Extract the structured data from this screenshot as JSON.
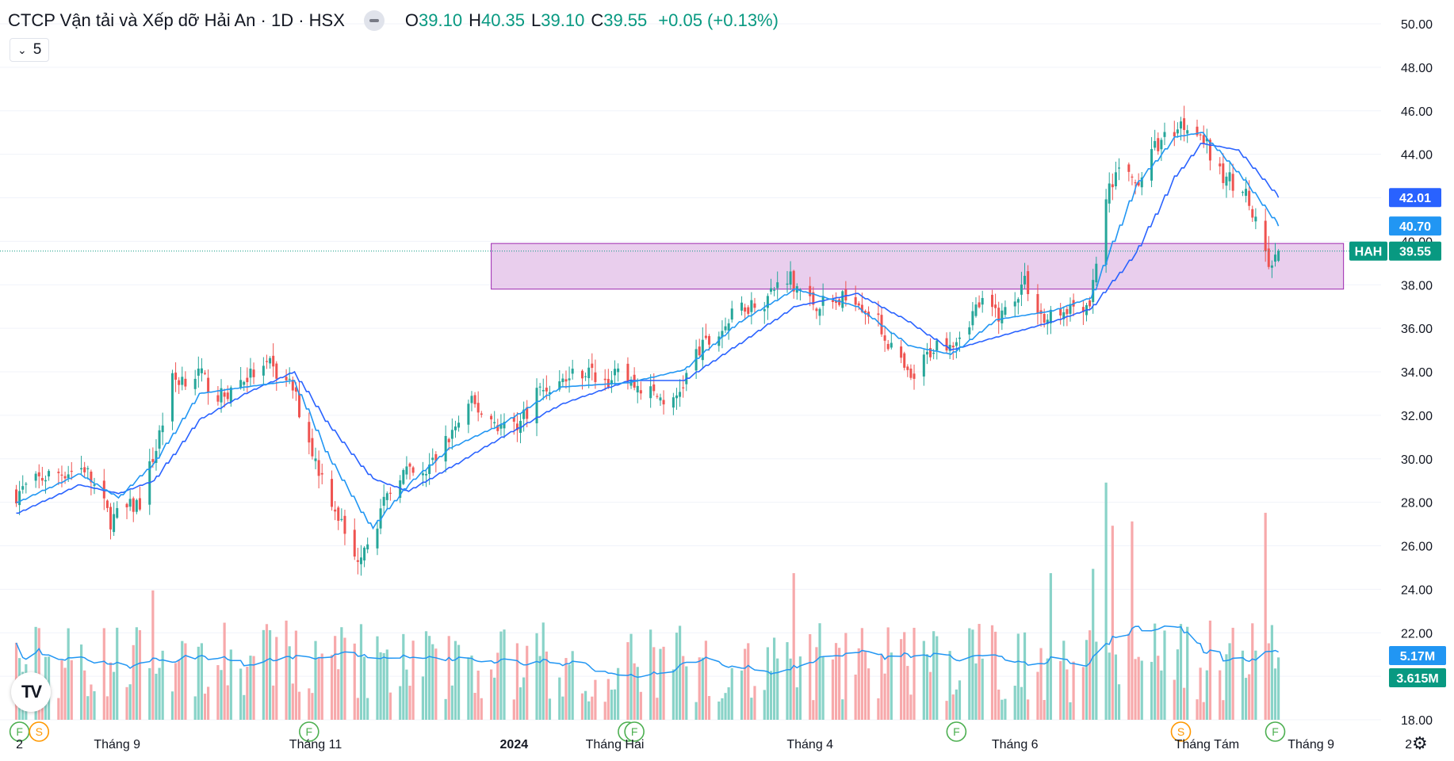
{
  "header": {
    "title": "CTCP Vận tải và Xếp dỡ Hải An · 1D · HSX",
    "open_label": "O",
    "open": "39.10",
    "high_label": "H",
    "high": "40.35",
    "low_label": "L",
    "low": "39.10",
    "close_label": "C",
    "close": "39.55",
    "change": "+0.05 (+0.13%)"
  },
  "indicator_badge": "5",
  "logo_text": "TV",
  "icons": {
    "collapse": "minus-icon",
    "chevron": "chevron-down-icon",
    "settings": "gear-icon",
    "logo": "tradingview-logo"
  },
  "colors": {
    "up": "#26a69a",
    "down": "#ef5350",
    "ma_fast": "#2196f3",
    "ma_slow": "#2962ff",
    "zone_fill": "#e1bee7",
    "zone_border": "#9c27b0",
    "volume_up": "#89d3c8",
    "volume_down": "#f7a9ab",
    "volume_ma": "#2196f3"
  },
  "chart_data": {
    "type": "candlestick",
    "symbol": "HAH",
    "ylim": [
      18,
      50
    ],
    "y_ticks": [
      "50.00",
      "48.00",
      "46.00",
      "44.00",
      "42.00",
      "40.00",
      "38.00",
      "36.00",
      "34.00",
      "32.00",
      "30.00",
      "28.00",
      "26.00",
      "24.00",
      "22.00",
      "20.00",
      "18.00"
    ],
    "x_ticks": [
      "2",
      "Tháng 9",
      "Tháng 11",
      "2024",
      "Tháng Hai",
      "Tháng 4",
      "Tháng 6",
      "Tháng Tám",
      "Tháng 9",
      "2"
    ],
    "grid": true,
    "price_labels": [
      {
        "text": "42.01",
        "value": 42.01,
        "color": "#2962ff"
      },
      {
        "text": "40.70",
        "value": 40.7,
        "color": "#2196f3"
      },
      {
        "symbol": "HAH",
        "text": "39.55",
        "value": 39.55,
        "color": "#089981"
      }
    ],
    "volume_labels": [
      {
        "text": "5.17M",
        "color": "#2196f3"
      },
      {
        "text": "3.615M",
        "color": "#089981"
      }
    ],
    "zone": {
      "from_date": "2023-12-25",
      "to_date": "2024-09-12",
      "low": 37.8,
      "high": 39.9
    },
    "close_path": [
      [
        "2023-08-01",
        28.4
      ],
      [
        "2023-08-10",
        29.2
      ],
      [
        "2023-08-22",
        29.6
      ],
      [
        "2023-08-30",
        27.2
      ],
      [
        "2023-09-08",
        28.0
      ],
      [
        "2023-09-13",
        30.6
      ],
      [
        "2023-09-18",
        33.6
      ],
      [
        "2023-09-26",
        33.9
      ],
      [
        "2023-10-03",
        32.8
      ],
      [
        "2023-10-10",
        33.7
      ],
      [
        "2023-10-18",
        34.2
      ],
      [
        "2023-10-25",
        33.2
      ],
      [
        "2023-11-01",
        29.9
      ],
      [
        "2023-11-07",
        27.8
      ],
      [
        "2023-11-13",
        25.3
      ],
      [
        "2023-11-20",
        27.2
      ],
      [
        "2023-11-27",
        29.4
      ],
      [
        "2023-12-04",
        29.1
      ],
      [
        "2023-12-12",
        31.0
      ],
      [
        "2023-12-19",
        32.5
      ],
      [
        "2023-12-28",
        31.5
      ],
      [
        "2024-01-03",
        31.7
      ],
      [
        "2024-01-08",
        33.1
      ],
      [
        "2024-01-15",
        33.5
      ],
      [
        "2024-01-22",
        34.1
      ],
      [
        "2024-01-29",
        33.6
      ],
      [
        "2024-02-02",
        33.8
      ],
      [
        "2024-02-19",
        32.5
      ],
      [
        "2024-02-26",
        34.8
      ],
      [
        "2024-03-04",
        35.8
      ],
      [
        "2024-03-11",
        37.0
      ],
      [
        "2024-03-18",
        37.3
      ],
      [
        "2024-03-25",
        38.5
      ],
      [
        "2024-04-01",
        37.2
      ],
      [
        "2024-04-08",
        37.1
      ],
      [
        "2024-04-15",
        37.5
      ],
      [
        "2024-04-22",
        36.2
      ],
      [
        "2024-05-02",
        33.5
      ],
      [
        "2024-05-09",
        35.2
      ],
      [
        "2024-05-16",
        35.6
      ],
      [
        "2024-05-23",
        37.1
      ],
      [
        "2024-05-30",
        36.6
      ],
      [
        "2024-06-06",
        38.2
      ],
      [
        "2024-06-12",
        36.3
      ],
      [
        "2024-06-19",
        37.0
      ],
      [
        "2024-06-26",
        37.2
      ],
      [
        "2024-07-01",
        41.8
      ],
      [
        "2024-07-05",
        43.5
      ],
      [
        "2024-07-10",
        42.6
      ],
      [
        "2024-07-17",
        44.5
      ],
      [
        "2024-07-24",
        45.4
      ],
      [
        "2024-07-29",
        45.3
      ],
      [
        "2024-08-05",
        43.0
      ],
      [
        "2024-08-12",
        42.6
      ],
      [
        "2024-08-16",
        40.7
      ],
      [
        "2024-08-21",
        38.6
      ],
      [
        "2024-08-23",
        39.55
      ]
    ],
    "volume_spikes": [
      [
        "2023-09-12",
        3.0
      ],
      [
        "2023-10-23",
        2.3
      ],
      [
        "2024-02-05",
        1.8
      ],
      [
        "2024-03-27",
        3.4
      ],
      [
        "2024-06-14",
        3.4
      ],
      [
        "2024-06-27",
        3.5
      ],
      [
        "2024-07-01",
        5.5
      ],
      [
        "2024-07-03",
        4.5
      ],
      [
        "2024-07-09",
        4.6
      ],
      [
        "2024-08-19",
        4.8
      ]
    ],
    "ma_slow_path": [
      [
        "2023-08-01",
        27.5
      ],
      [
        "2023-08-20",
        28.8
      ],
      [
        "2023-09-01",
        28.4
      ],
      [
        "2023-09-12",
        29.0
      ],
      [
        "2023-09-26",
        31.8
      ],
      [
        "2023-10-10",
        33.0
      ],
      [
        "2023-10-25",
        34.0
      ],
      [
        "2023-11-05",
        31.5
      ],
      [
        "2023-11-18",
        29.1
      ],
      [
        "2023-11-29",
        28.5
      ],
      [
        "2023-12-12",
        29.6
      ],
      [
        "2023-12-28",
        31.0
      ],
      [
        "2024-01-15",
        32.5
      ],
      [
        "2024-02-05",
        33.6
      ],
      [
        "2024-02-22",
        33.6
      ],
      [
        "2024-03-10",
        35.3
      ],
      [
        "2024-03-27",
        37.0
      ],
      [
        "2024-04-15",
        37.6
      ],
      [
        "2024-05-01",
        36.3
      ],
      [
        "2024-05-14",
        35.0
      ],
      [
        "2024-05-28",
        35.6
      ],
      [
        "2024-06-14",
        36.3
      ],
      [
        "2024-06-26",
        36.9
      ],
      [
        "2024-07-10",
        39.5
      ],
      [
        "2024-07-22",
        43.0
      ],
      [
        "2024-07-30",
        44.5
      ],
      [
        "2024-08-10",
        44.2
      ],
      [
        "2024-08-23",
        42.01
      ]
    ],
    "ma_fast_path": [
      [
        "2023-08-01",
        28.0
      ],
      [
        "2023-08-20",
        29.3
      ],
      [
        "2023-09-01",
        28.2
      ],
      [
        "2023-09-12",
        29.8
      ],
      [
        "2023-09-26",
        33.0
      ],
      [
        "2023-10-10",
        33.3
      ],
      [
        "2023-10-25",
        33.6
      ],
      [
        "2023-11-05",
        30.0
      ],
      [
        "2023-11-18",
        26.8
      ],
      [
        "2023-11-29",
        28.8
      ],
      [
        "2023-12-12",
        30.5
      ],
      [
        "2023-12-28",
        31.6
      ],
      [
        "2024-01-15",
        33.3
      ],
      [
        "2024-02-05",
        33.5
      ],
      [
        "2024-02-22",
        34.1
      ],
      [
        "2024-03-10",
        36.3
      ],
      [
        "2024-03-27",
        37.8
      ],
      [
        "2024-04-15",
        37.0
      ],
      [
        "2024-05-01",
        35.2
      ],
      [
        "2024-05-14",
        34.8
      ],
      [
        "2024-05-28",
        36.4
      ],
      [
        "2024-06-14",
        36.8
      ],
      [
        "2024-06-26",
        37.4
      ],
      [
        "2024-07-10",
        42.6
      ],
      [
        "2024-07-22",
        44.8
      ],
      [
        "2024-07-30",
        45.0
      ],
      [
        "2024-08-10",
        43.2
      ],
      [
        "2024-08-23",
        40.7
      ]
    ],
    "events": [
      {
        "date": "2023-08-02",
        "label": "F",
        "color": "#4caf50"
      },
      {
        "date": "2023-08-08",
        "label": "S",
        "color": "#ff9800"
      },
      {
        "date": "2023-10-30",
        "label": "F",
        "color": "#4caf50"
      },
      {
        "date": "2024-02-05",
        "label": "F",
        "color": "#4caf50"
      },
      {
        "date": "2024-02-07",
        "label": "F",
        "color": "#4caf50"
      },
      {
        "date": "2024-05-16",
        "label": "F",
        "color": "#4caf50"
      },
      {
        "date": "2024-07-24",
        "label": "S",
        "color": "#ff9800"
      },
      {
        "date": "2024-08-22",
        "label": "F",
        "color": "#4caf50"
      }
    ]
  }
}
